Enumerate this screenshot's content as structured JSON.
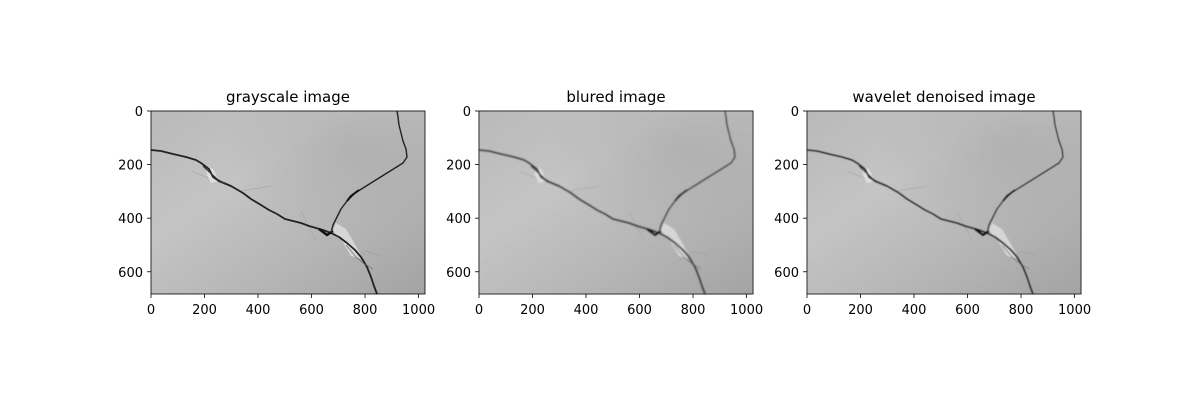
{
  "panels": [
    {
      "title": "grayscale image",
      "xticks": [
        "0",
        "200",
        "400",
        "600",
        "800",
        "1000"
      ],
      "yticks": [
        "0",
        "200",
        "400",
        "600"
      ]
    },
    {
      "title": "blured image",
      "xticks": [
        "0",
        "200",
        "400",
        "600",
        "800",
        "1000"
      ],
      "yticks": [
        "0",
        "200",
        "400",
        "600"
      ]
    },
    {
      "title": "wavelet denoised image",
      "xticks": [
        "0",
        "200",
        "400",
        "600",
        "800",
        "1000"
      ],
      "yticks": [
        "0",
        "200",
        "400",
        "600"
      ]
    }
  ]
}
